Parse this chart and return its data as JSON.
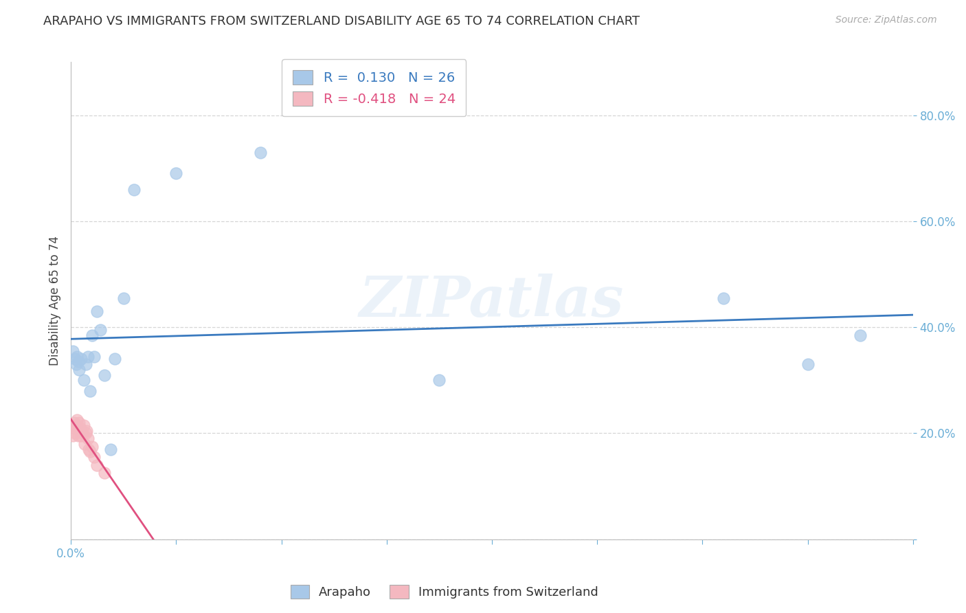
{
  "title": "ARAPAHO VS IMMIGRANTS FROM SWITZERLAND DISABILITY AGE 65 TO 74 CORRELATION CHART",
  "source": "Source: ZipAtlas.com",
  "ylabel": "Disability Age 65 to 74",
  "watermark": "ZIPatlas",
  "xlim": [
    0.0,
    0.8
  ],
  "ylim": [
    0.0,
    0.9
  ],
  "xtick_positions": [
    0.0,
    0.1,
    0.2,
    0.3,
    0.4,
    0.5,
    0.6,
    0.7,
    0.8
  ],
  "xtick_labels_shown": {
    "0.0": "0.0%",
    "0.80": "80.0%"
  },
  "ytick_positions": [
    0.0,
    0.2,
    0.4,
    0.6,
    0.8
  ],
  "ytick_labels": [
    "",
    "20.0%",
    "40.0%",
    "60.0%",
    "80.0%"
  ],
  "arapaho_r": 0.13,
  "arapaho_n": 26,
  "switzerland_r": -0.418,
  "switzerland_n": 24,
  "arapaho_color": "#a8c8e8",
  "arapaho_line_color": "#3a7abf",
  "switzerland_color": "#f4b8c0",
  "switzerland_line_color": "#e05080",
  "arapaho_x": [
    0.002,
    0.004,
    0.005,
    0.006,
    0.007,
    0.008,
    0.01,
    0.012,
    0.014,
    0.016,
    0.018,
    0.02,
    0.022,
    0.025,
    0.028,
    0.032,
    0.038,
    0.042,
    0.05,
    0.06,
    0.1,
    0.18,
    0.35,
    0.62,
    0.7,
    0.75
  ],
  "arapaho_y": [
    0.355,
    0.34,
    0.33,
    0.345,
    0.335,
    0.32,
    0.34,
    0.3,
    0.33,
    0.345,
    0.28,
    0.385,
    0.345,
    0.43,
    0.395,
    0.31,
    0.17,
    0.34,
    0.455,
    0.66,
    0.69,
    0.73,
    0.3,
    0.455,
    0.33,
    0.385
  ],
  "switzerland_x": [
    0.001,
    0.002,
    0.003,
    0.003,
    0.004,
    0.004,
    0.005,
    0.006,
    0.007,
    0.008,
    0.009,
    0.01,
    0.011,
    0.012,
    0.013,
    0.014,
    0.015,
    0.016,
    0.017,
    0.018,
    0.02,
    0.022,
    0.025,
    0.032
  ],
  "switzerland_y": [
    0.215,
    0.195,
    0.22,
    0.215,
    0.21,
    0.2,
    0.215,
    0.225,
    0.195,
    0.22,
    0.21,
    0.195,
    0.2,
    0.215,
    0.18,
    0.2,
    0.205,
    0.19,
    0.17,
    0.165,
    0.175,
    0.155,
    0.14,
    0.125
  ],
  "background_color": "#ffffff",
  "grid_color": "#cccccc",
  "title_color": "#333333",
  "tick_color": "#6baed6"
}
